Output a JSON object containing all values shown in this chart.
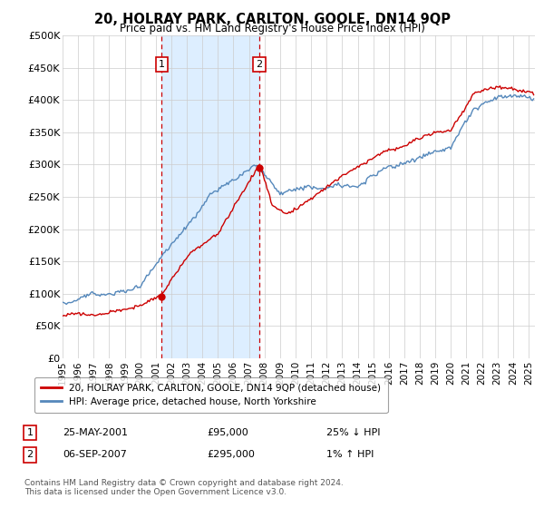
{
  "title": "20, HOLRAY PARK, CARLTON, GOOLE, DN14 9QP",
  "subtitle": "Price paid vs. HM Land Registry's House Price Index (HPI)",
  "ylabel_ticks": [
    "£0",
    "£50K",
    "£100K",
    "£150K",
    "£200K",
    "£250K",
    "£300K",
    "£350K",
    "£400K",
    "£450K",
    "£500K"
  ],
  "ytick_values": [
    0,
    50000,
    100000,
    150000,
    200000,
    250000,
    300000,
    350000,
    400000,
    450000,
    500000
  ],
  "ylim": [
    0,
    500000
  ],
  "xlim_start": 1995.0,
  "xlim_end": 2025.4,
  "hpi_color": "#5588bb",
  "price_color": "#cc0000",
  "shade_color": "#ddeeff",
  "transaction1": {
    "date_num": 2001.38,
    "price": 95000,
    "label": "1",
    "pct": "25% ↓ HPI",
    "date_str": "25-MAY-2001"
  },
  "transaction2": {
    "date_num": 2007.67,
    "price": 295000,
    "label": "2",
    "pct": "1% ↑ HPI",
    "date_str": "06-SEP-2007"
  },
  "legend_entry1": "20, HOLRAY PARK, CARLTON, GOOLE, DN14 9QP (detached house)",
  "legend_entry2": "HPI: Average price, detached house, North Yorkshire",
  "footer": "Contains HM Land Registry data © Crown copyright and database right 2024.\nThis data is licensed under the Open Government Licence v3.0.",
  "xtick_years": [
    1995,
    1996,
    1997,
    1998,
    1999,
    2000,
    2001,
    2002,
    2003,
    2004,
    2005,
    2006,
    2007,
    2008,
    2009,
    2010,
    2011,
    2012,
    2013,
    2014,
    2015,
    2016,
    2017,
    2018,
    2019,
    2020,
    2021,
    2022,
    2023,
    2024,
    2025
  ],
  "table_row1": [
    "1",
    "25-MAY-2001",
    "£95,000",
    "25% ↓ HPI"
  ],
  "table_row2": [
    "2",
    "06-SEP-2007",
    "£295,000",
    "1% ↑ HPI"
  ]
}
